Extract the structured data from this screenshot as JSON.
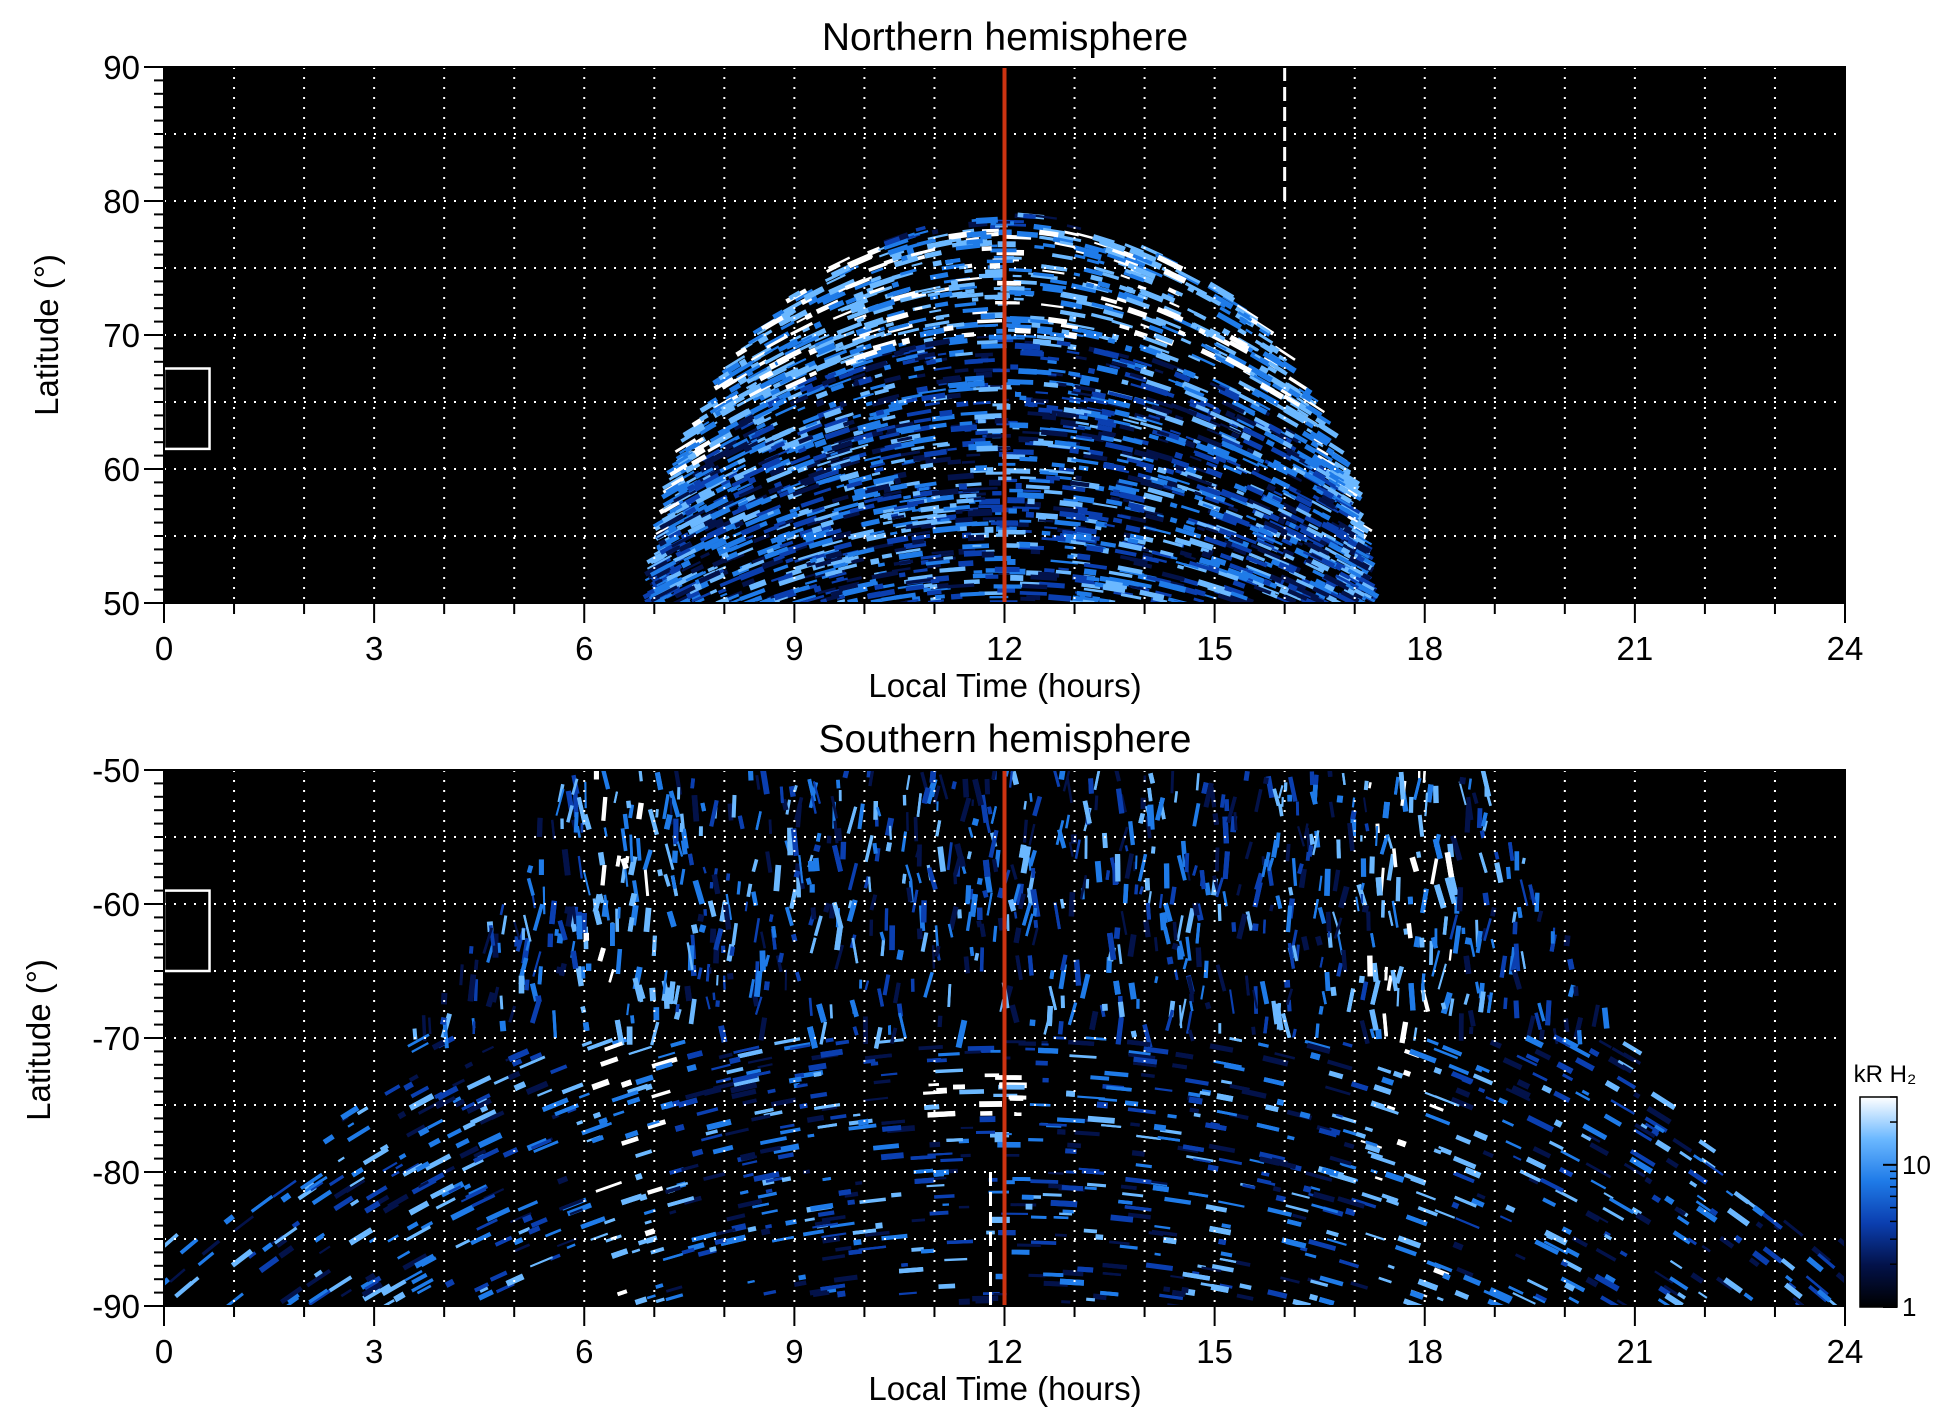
{
  "chart_data": [
    {
      "type": "heatmap",
      "title": "Northern hemisphere",
      "xlabel": "Local Time (hours)",
      "ylabel": "Latitude (°)",
      "xlim": [
        0,
        24
      ],
      "ylim": [
        50,
        90
      ],
      "xticks": [
        0,
        3,
        6,
        9,
        12,
        15,
        18,
        21,
        24
      ],
      "yticks": [
        50,
        60,
        70,
        80,
        90
      ],
      "xtick_labels": [
        "0",
        "3",
        "6",
        "9",
        "12",
        "15",
        "18",
        "21",
        "24"
      ],
      "ytick_labels": [
        "50",
        "60",
        "70",
        "80",
        "90"
      ],
      "grid": true,
      "emission_region": {
        "local_time_extent": [
          7.0,
          17.2
        ],
        "max_latitude": 79,
        "main_oval_latitude_noon": 71,
        "main_oval_latitude_flanks": 52
      },
      "marker_line": {
        "local_time": 12,
        "color": "#cc3311"
      },
      "dashed_line": {
        "local_time": 16,
        "lat_range": [
          80,
          90
        ]
      },
      "box": {
        "local_time": [
          0,
          0.65
        ],
        "lat_range": [
          61.5,
          67.5
        ]
      }
    },
    {
      "type": "heatmap",
      "title": "Southern hemisphere",
      "xlabel": "Local Time (hours)",
      "ylabel": "Latitude (°)",
      "xlim": [
        0,
        24
      ],
      "ylim": [
        -90,
        -50
      ],
      "xticks": [
        0,
        3,
        6,
        9,
        12,
        15,
        18,
        21,
        24
      ],
      "yticks": [
        -90,
        -80,
        -70,
        -60,
        -50
      ],
      "xtick_labels": [
        "0",
        "3",
        "6",
        "9",
        "12",
        "15",
        "18",
        "21",
        "24"
      ],
      "ytick_labels": [
        "-90",
        "-80",
        "-70",
        "-60",
        "-50"
      ],
      "grid": true,
      "emission_region": {
        "local_time_extent_at_minus50": [
          5.8,
          18.8
        ],
        "local_time_extent_at_minus85": [
          0,
          24
        ],
        "bright_arc_local_times": [
          6.6,
          17.8
        ],
        "bright_patch": {
          "local_time": 11.5,
          "latitude": -74
        }
      },
      "marker_line": {
        "local_time": 12,
        "color": "#cc3311"
      },
      "dashed_line": {
        "local_time": 11.8,
        "lat_range": [
          -90,
          -80
        ]
      },
      "box": {
        "local_time": [
          0,
          0.65
        ],
        "lat_range": [
          -65,
          -59
        ]
      },
      "colorbar": {
        "label": "kR H₂",
        "scale": "log",
        "range": [
          1,
          30
        ],
        "tick_labels": [
          "1",
          "10"
        ],
        "tick_values": [
          1,
          10
        ],
        "colors": [
          "#000000",
          "#03124a",
          "#0b3fb0",
          "#1f7be8",
          "#6bb8ff",
          "#ffffff"
        ]
      }
    }
  ]
}
